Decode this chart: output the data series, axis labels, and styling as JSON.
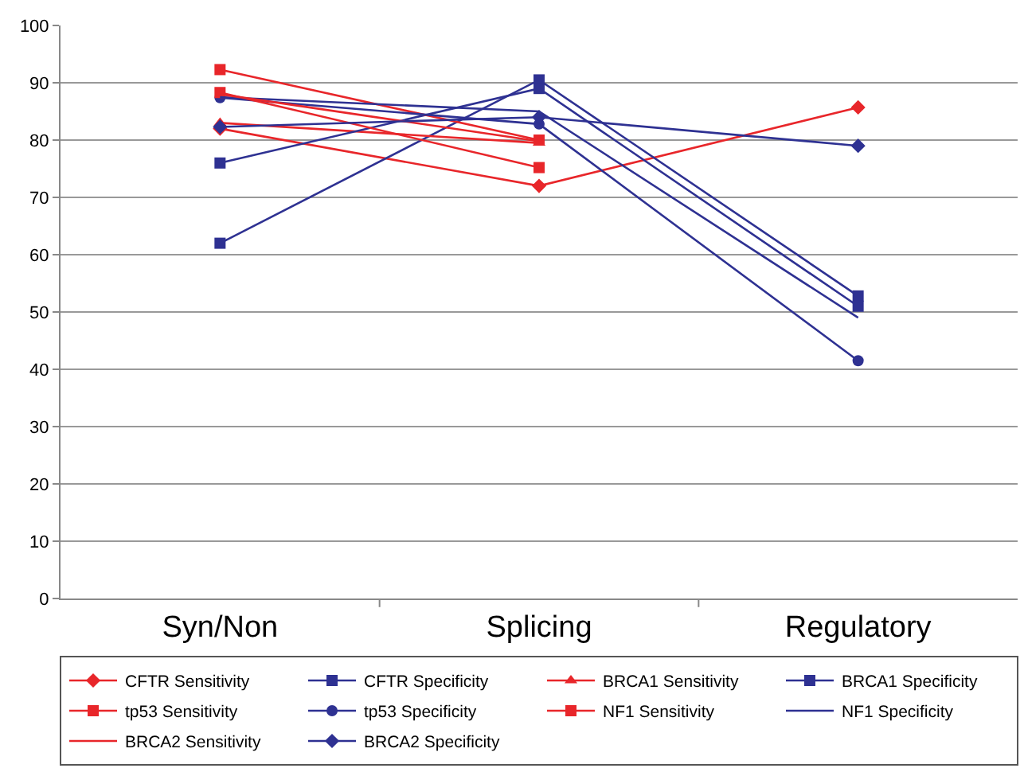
{
  "chart_data": {
    "type": "line",
    "categories": [
      "Syn/Non",
      "Splicing",
      "Regulatory"
    ],
    "series": [
      {
        "name": "CFTR Sensitivity",
        "color": "#e8262a",
        "marker": "diamond",
        "values": [
          82,
          72,
          85.7
        ]
      },
      {
        "name": "CFTR Specificity",
        "color": "#2e3192",
        "marker": "square",
        "values": [
          62,
          90.5,
          52.8
        ]
      },
      {
        "name": "BRCA1 Sensitivity",
        "color": "#e8262a",
        "marker": "triangle",
        "values": [
          83,
          79.5,
          null
        ]
      },
      {
        "name": "BRCA1 Specificity",
        "color": "#2e3192",
        "marker": "square",
        "values": [
          76,
          89,
          51
        ]
      },
      {
        "name": "tp53 Sensitivity",
        "color": "#e8262a",
        "marker": "square",
        "values": [
          92.3,
          80,
          null
        ]
      },
      {
        "name": "tp53 Specificity",
        "color": "#2e3192",
        "marker": "circle",
        "values": [
          87.4,
          82.8,
          41.5
        ]
      },
      {
        "name": "NF1 Sensitivity",
        "color": "#e8262a",
        "marker": "square",
        "values": [
          88.3,
          75.2,
          null
        ]
      },
      {
        "name": "NF1 Specificity",
        "color": "#2e3192",
        "marker": "none",
        "values": [
          87.5,
          85,
          49
        ]
      },
      {
        "name": "BRCA2 Sensitivity",
        "color": "#e8262a",
        "marker": "none",
        "values": [
          88,
          79.8,
          null
        ]
      },
      {
        "name": "BRCA2 Specificity",
        "color": "#2e3192",
        "marker": "diamond",
        "values": [
          82.3,
          84,
          79
        ]
      }
    ],
    "ylim": [
      0,
      100
    ],
    "yticks": [
      0,
      10,
      20,
      30,
      40,
      50,
      60,
      70,
      80,
      90,
      100
    ],
    "grid": "y",
    "legend": "bottom",
    "line_style": "solid"
  }
}
